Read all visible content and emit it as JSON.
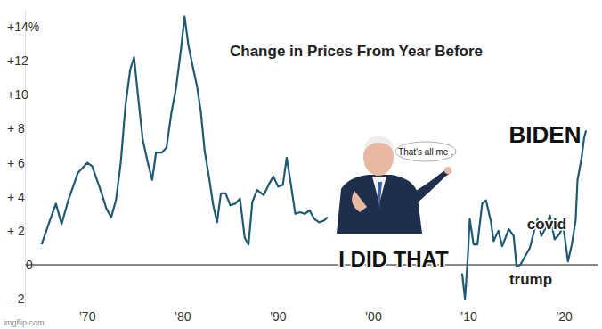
{
  "chart_data": {
    "type": "line",
    "title": "Change in Prices From Year Before",
    "color": "#1f5a72",
    "x": [
      1965.2,
      1966.0,
      1966.7,
      1967.3,
      1968.0,
      1969.0,
      1970.0,
      1970.5,
      1971.0,
      1971.5,
      1972.0,
      1972.5,
      1973.0,
      1973.5,
      1974.0,
      1974.5,
      1974.9,
      1975.3,
      1975.8,
      1976.3,
      1976.8,
      1977.2,
      1977.8,
      1978.3,
      1978.8,
      1979.3,
      1979.8,
      1980.2,
      1980.6,
      1981.0,
      1981.5,
      1981.9,
      1982.3,
      1982.8,
      1983.2,
      1983.6,
      1984.0,
      1984.5,
      1985.0,
      1985.5,
      1986.0,
      1986.5,
      1986.9,
      1987.3,
      1987.8,
      1988.5,
      1989.0,
      1989.5,
      1990.0,
      1990.5,
      1990.9,
      1991.3,
      1991.8,
      1992.3,
      1992.8,
      1993.3,
      1993.8,
      1994.3,
      1994.8,
      1995.2,
      2002.0,
      2009.3,
      2009.6,
      2009.9,
      2010.1,
      2010.5,
      2010.9,
      2011.4,
      2011.8,
      2012.3,
      2012.6,
      2013.1,
      2013.5,
      2014.2,
      2014.7,
      2015.0,
      2015.4,
      2015.9,
      2016.4,
      2016.9,
      2017.2,
      2017.6,
      2018.0,
      2018.5,
      2019.0,
      2019.5,
      2019.9,
      2020.4,
      2020.8,
      2021.2,
      2021.4,
      2021.8,
      2022.1,
      2022.3
    ],
    "values": [
      1.2,
      2.5,
      3.6,
      2.4,
      3.8,
      5.4,
      6.0,
      5.8,
      5.0,
      4.2,
      3.3,
      2.8,
      3.8,
      6.0,
      9.4,
      11.5,
      12.2,
      10.0,
      7.4,
      6.1,
      5.0,
      6.6,
      6.6,
      6.9,
      8.9,
      10.4,
      12.6,
      14.6,
      12.9,
      11.8,
      10.5,
      9.0,
      6.7,
      5.0,
      3.5,
      2.5,
      4.2,
      4.2,
      3.5,
      3.6,
      3.9,
      1.6,
      1.2,
      3.7,
      4.4,
      4.1,
      4.7,
      5.2,
      4.6,
      4.7,
      6.3,
      4.9,
      3.0,
      3.1,
      3.0,
      3.2,
      2.7,
      2.5,
      2.6,
      2.8,
      null,
      -0.5,
      -2.0,
      0.5,
      2.7,
      1.2,
      1.2,
      3.6,
      3.8,
      2.6,
      1.4,
      2.0,
      1.1,
      2.1,
      1.7,
      -0.1,
      0.0,
      0.5,
      1.0,
      2.1,
      2.7,
      1.7,
      2.1,
      2.9,
      1.5,
      1.8,
      2.3,
      0.2,
      1.2,
      2.6,
      5.0,
      6.2,
      7.5,
      7.9
    ],
    "xlim": [
      1963.5,
      2023.5
    ],
    "ylim": [
      -2.5,
      15
    ],
    "xticks": [
      {
        "value": 1970,
        "label": "’70"
      },
      {
        "value": 1980,
        "label": "’80"
      },
      {
        "value": 1990,
        "label": "’90"
      },
      {
        "value": 2000,
        "label": "’00"
      },
      {
        "value": 2010,
        "label": "’10"
      },
      {
        "value": 2020,
        "label": "’20"
      }
    ],
    "yticks": [
      {
        "value": 14,
        "label": "+14%"
      },
      {
        "value": 12,
        "label": "+12"
      },
      {
        "value": 10,
        "label": "+10"
      },
      {
        "value": 8,
        "label": "+ 8"
      },
      {
        "value": 6,
        "label": "+ 6"
      },
      {
        "value": 4,
        "label": "+ 4"
      },
      {
        "value": 2,
        "label": "+ 2"
      },
      0,
      {
        "value": -2,
        "label": "– 2"
      }
    ],
    "grid": false,
    "annotations": [
      "BIDEN",
      "covid",
      "trump",
      "I DID THAT",
      "That's all me .",
      "imgflip.com"
    ]
  }
}
